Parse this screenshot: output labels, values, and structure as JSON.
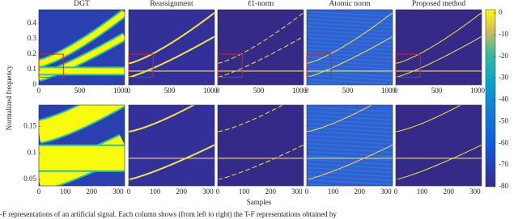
{
  "figure": {
    "panel_titles": [
      "DGT",
      "Reassignment",
      "ℓ1-norm",
      "Atomic norm",
      "Proposed method"
    ],
    "ylabel": "Normalized frequency",
    "xlabel": "Samples",
    "top_xlim": [
      0,
      1050
    ],
    "top_xticks": [
      0,
      500,
      1000
    ],
    "top_ylim": [
      0,
      0.49
    ],
    "top_yticks": [
      0,
      0.1,
      0.2,
      0.3,
      0.4
    ],
    "bottom_xlim": [
      0,
      325
    ],
    "bottom_xticks": [
      0,
      100,
      200,
      300
    ],
    "bottom_ylim": [
      0.038,
      0.19
    ],
    "bottom_yticks": [
      0.05,
      0.1,
      0.15
    ],
    "colorbar_lim": [
      -80,
      1.5
    ],
    "colorbar_ticks": [
      0,
      -10,
      -20,
      -30,
      -40,
      -50,
      -60,
      -70,
      -80
    ],
    "caption": "-F representations of an artificial signal.  Each column shows (from left to right) the T-F representations obtained by"
  }
}
